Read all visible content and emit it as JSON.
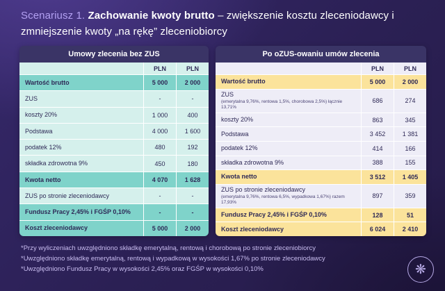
{
  "title": {
    "prefix": "Scenariusz 1.",
    "bold": "Zachowanie kwoty brutto",
    "rest": "– zwiększenie kosztu zleceniodawcy i zmniejszenie kwoty „na rękę” zleceniobiorcy"
  },
  "tables": [
    {
      "title": "Umowy zlecenia bez ZUS",
      "theme": "teal",
      "columns": [
        "PLN",
        "PLN"
      ],
      "rows": [
        {
          "label": "Wartość brutto",
          "v1": "5 000",
          "v2": "2 000",
          "highlight": true
        },
        {
          "label": "ZUS",
          "v1": "-",
          "v2": "-"
        },
        {
          "label": "koszty 20%",
          "v1": "1 000",
          "v2": "400"
        },
        {
          "label": "Podstawa",
          "v1": "4 000",
          "v2": "1 600"
        },
        {
          "label": "podatek 12%",
          "v1": "480",
          "v2": "192"
        },
        {
          "label": "składka zdrowotna 9%",
          "v1": "450",
          "v2": "180"
        },
        {
          "label": "Kwota netto",
          "v1": "4 070",
          "v2": "1 628",
          "highlight": true
        },
        {
          "label": "ZUS po stronie zleceniodawcy",
          "v1": "-",
          "v2": "-"
        },
        {
          "label": "Fundusz Pracy 2,45% i FGŚP 0,10%",
          "v1": "-",
          "v2": "-",
          "highlight": true
        },
        {
          "label": "Koszt zleceniodawcy",
          "v1": "5 000",
          "v2": "2 000",
          "highlight": true
        }
      ]
    },
    {
      "title": "Po oZUS-owaniu umów zlecenia",
      "theme": "yellow",
      "columns": [
        "PLN",
        "PLN"
      ],
      "rows": [
        {
          "label": "Wartość brutto",
          "v1": "5 000",
          "v2": "2 000",
          "highlight": true
        },
        {
          "label": "ZUS",
          "sublabel": "(emerytalna 9,76%, rentowa 1,5%, chorobowa 2,5%) łącznie 13,71%",
          "v1": "686",
          "v2": "274"
        },
        {
          "label": "koszty 20%",
          "v1": "863",
          "v2": "345"
        },
        {
          "label": "Podstawa",
          "v1": "3 452",
          "v2": "1 381"
        },
        {
          "label": "podatek 12%",
          "v1": "414",
          "v2": "166"
        },
        {
          "label": "składka zdrowotna 9%",
          "v1": "388",
          "v2": "155"
        },
        {
          "label": "Kwota netto",
          "v1": "3 512",
          "v2": "1 405",
          "highlight": true
        },
        {
          "label": "ZUS po stronie zleceniodawcy",
          "sublabel": "(emerytalna 9,76%, rentowa 6,5%, wypadkowa 1,67%) razem 17,93%",
          "v1": "897",
          "v2": "359"
        },
        {
          "label": "Fundusz Pracy 2,45% i FGŚP 0,10%",
          "v1": "128",
          "v2": "51",
          "highlight": true
        },
        {
          "label": "Koszt zleceniodawcy",
          "v1": "6 024",
          "v2": "2 410",
          "highlight": true
        }
      ]
    }
  ],
  "footnotes": [
    "*Przy wyliczeniach uwzględniono składkę emerytalną, rentową i chorobową po stronie zleceniobiorcy",
    "*Uwzględniono składkę emerytalną, rentową i wypadkową w wysokości 1,67% po stronie zleceniodawcy",
    "*Uwzględniono Fundusz Pracy w wysokości 2,45% oraz FGŚP w wysokości 0,10%"
  ],
  "logo": {
    "icon": "flower-swirl",
    "glyph": "❋"
  },
  "colors": {
    "background": "#2b2054",
    "table_header": "#3a3466",
    "teal_base": "#d5f0ec",
    "teal_highlight": "#7fd3ca",
    "lavender_base": "#eeedf7",
    "yellow_highlight": "#fbe39b",
    "title_accent": "#b3a0f2",
    "footnote_text": "#c9bdf0",
    "table_text": "#2e2956"
  }
}
